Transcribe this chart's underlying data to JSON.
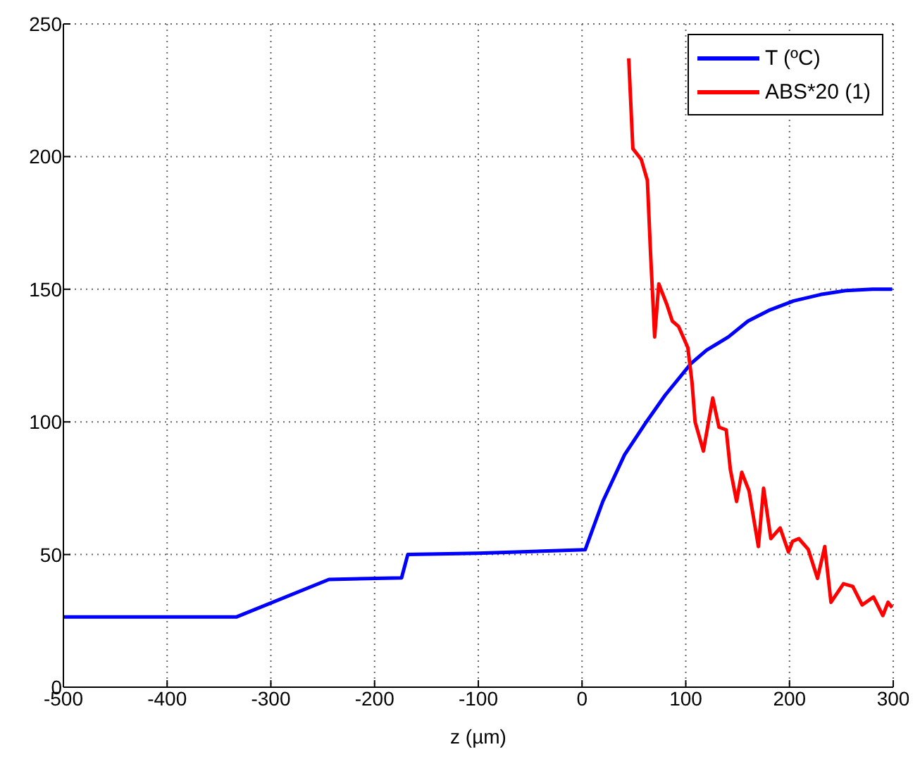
{
  "chart_data": {
    "type": "line",
    "xlabel": "z (µm)",
    "xlim": [
      -500,
      300
    ],
    "xticks": [
      -500,
      -400,
      -300,
      -200,
      -100,
      0,
      100,
      200,
      300
    ],
    "ylim": [
      0,
      250
    ],
    "yticks": [
      0,
      50,
      100,
      150,
      200,
      250
    ],
    "grid": true,
    "legend": "top right",
    "series": [
      {
        "name": "T (ºC)",
        "color": "#0000ff",
        "x": [
          -500,
          -333,
          -244,
          -174,
          -168,
          -100,
          3,
          20,
          41,
          62,
          80,
          105,
          120,
          141,
          160,
          180,
          204,
          230,
          254,
          280,
          299
        ],
        "values": [
          26.5,
          26.5,
          40.6,
          41.2,
          50,
          50.5,
          51.8,
          70,
          87.6,
          100,
          110,
          122,
          127,
          132,
          138,
          142,
          145.6,
          148,
          149.5,
          150,
          150
        ]
      },
      {
        "name": "ABS*20 (1)",
        "color": "#ff0000",
        "x": [
          45,
          49,
          57,
          63,
          66,
          70,
          74,
          82,
          87,
          93,
          102,
          106,
          109,
          117,
          126,
          132,
          139,
          143,
          149,
          154,
          161,
          170,
          175,
          182,
          191,
          199,
          203,
          209,
          218,
          227,
          234,
          240,
          252,
          261,
          270,
          281,
          290,
          295,
          299
        ],
        "values": [
          237,
          203,
          199,
          191,
          164,
          132,
          152,
          144,
          138,
          136,
          128,
          115,
          100,
          89,
          109,
          98,
          97,
          82,
          70,
          81,
          74,
          53,
          75,
          56,
          60,
          51,
          55,
          56,
          52,
          41,
          53,
          32,
          39,
          38,
          31,
          34,
          27,
          32,
          30
        ]
      }
    ]
  }
}
